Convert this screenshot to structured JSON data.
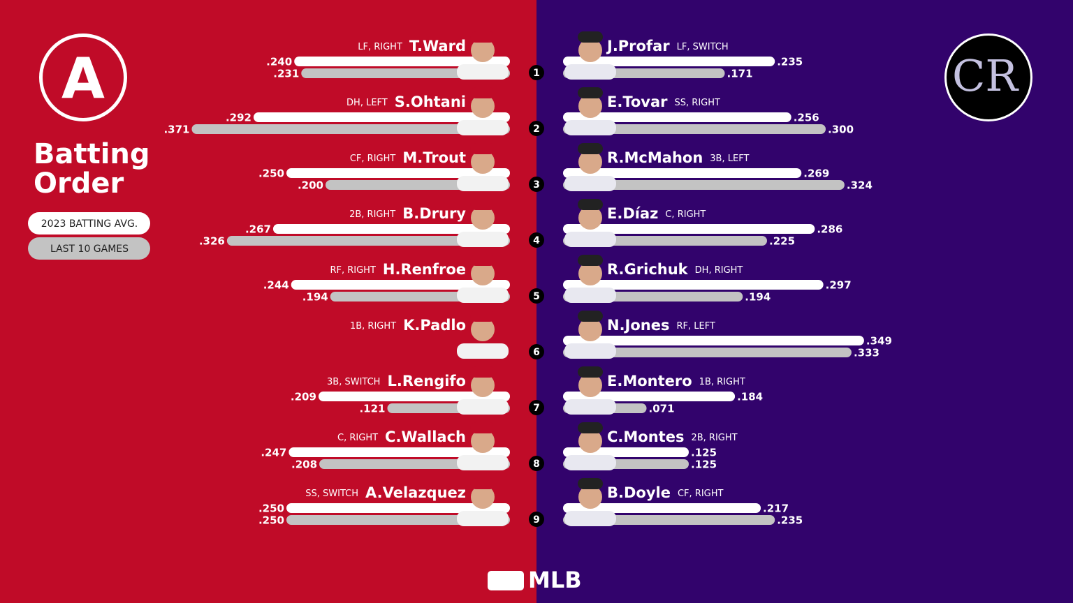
{
  "title": "Batting Order",
  "legend": [
    "2023 BATTING AVG.",
    "LAST 10 GAMES"
  ],
  "batting_slots": [
    1,
    2,
    3,
    4,
    5,
    6,
    7,
    8,
    9
  ],
  "logos": {
    "home": "A",
    "away": "CR"
  },
  "footer": "MLB",
  "teams": [
    {
      "players": [
        {
          "name": "T.Ward",
          "position": "LF, RIGHT",
          "avg": 0.24,
          "avg_label": ".240",
          "last10": 0.231,
          "last10_label": ".231"
        },
        {
          "name": "S.Ohtani",
          "position": "DH, LEFT",
          "avg": 0.292,
          "avg_label": ".292",
          "last10": 0.371,
          "last10_label": ".371"
        },
        {
          "name": "M.Trout",
          "position": "CF, RIGHT",
          "avg": 0.25,
          "avg_label": ".250",
          "last10": 0.2,
          "last10_label": ".200"
        },
        {
          "name": "B.Drury",
          "position": "2B, RIGHT",
          "avg": 0.267,
          "avg_label": ".267",
          "last10": 0.326,
          "last10_label": ".326"
        },
        {
          "name": "H.Renfroe",
          "position": "RF, RIGHT",
          "avg": 0.244,
          "avg_label": ".244",
          "last10": 0.194,
          "last10_label": ".194"
        },
        {
          "name": "K.Padlo",
          "position": "1B, RIGHT"
        },
        {
          "name": "L.Rengifo",
          "position": "3B, SWITCH",
          "avg": 0.209,
          "avg_label": ".209",
          "last10": 0.121,
          "last10_label": ".121"
        },
        {
          "name": "C.Wallach",
          "position": "C, RIGHT",
          "avg": 0.247,
          "avg_label": ".247",
          "last10": 0.208,
          "last10_label": ".208"
        },
        {
          "name": "A.Velazquez",
          "position": "SS, SWITCH",
          "avg": 0.25,
          "avg_label": ".250",
          "last10": 0.25,
          "last10_label": ".250"
        }
      ]
    },
    {
      "players": [
        {
          "name": "J.Profar",
          "position": "LF, SWITCH",
          "avg": 0.235,
          "avg_label": ".235",
          "last10": 0.171,
          "last10_label": ".171"
        },
        {
          "name": "E.Tovar",
          "position": "SS, RIGHT",
          "avg": 0.256,
          "avg_label": ".256",
          "last10": 0.3,
          "last10_label": ".300"
        },
        {
          "name": "R.McMahon",
          "position": "3B, LEFT",
          "avg": 0.269,
          "avg_label": ".269",
          "last10": 0.324,
          "last10_label": ".324"
        },
        {
          "name": "E.Díaz",
          "position": "C, RIGHT",
          "avg": 0.286,
          "avg_label": ".286",
          "last10": 0.225,
          "last10_label": ".225"
        },
        {
          "name": "R.Grichuk",
          "position": "DH, RIGHT",
          "avg": 0.297,
          "avg_label": ".297",
          "last10": 0.194,
          "last10_label": ".194"
        },
        {
          "name": "N.Jones",
          "position": "RF, LEFT",
          "avg": 0.349,
          "avg_label": ".349",
          "last10": 0.333,
          "last10_label": ".333"
        },
        {
          "name": "E.Montero",
          "position": "1B, RIGHT",
          "avg": 0.184,
          "avg_label": ".184",
          "last10": 0.071,
          "last10_label": ".071"
        },
        {
          "name": "C.Montes",
          "position": "2B, RIGHT",
          "avg": 0.125,
          "avg_label": ".125",
          "last10": 0.125,
          "last10_label": ".125"
        },
        {
          "name": "B.Doyle",
          "position": "CF, RIGHT",
          "avg": 0.217,
          "avg_label": ".217",
          "last10": 0.235,
          "last10_label": ".235"
        }
      ]
    }
  ]
}
